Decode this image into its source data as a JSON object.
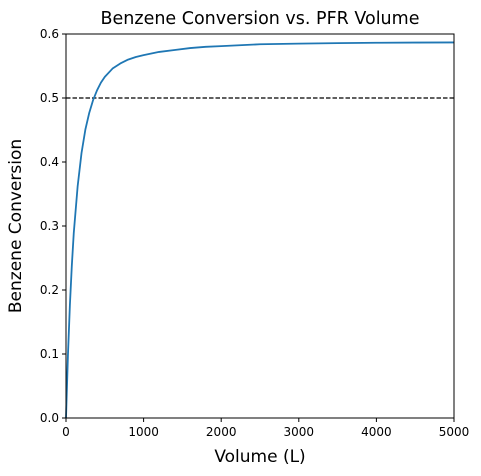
{
  "chart_data": {
    "type": "line",
    "title": "Benzene Conversion vs. PFR Volume",
    "xlabel": "Volume (L)",
    "ylabel": "Benzene Conversion",
    "xlim": [
      0,
      5000
    ],
    "ylim": [
      0,
      0.6
    ],
    "xticks": [
      0,
      1000,
      2000,
      3000,
      4000,
      5000
    ],
    "xtick_labels": [
      "0",
      "1000",
      "2000",
      "3000",
      "4000",
      "5000"
    ],
    "yticks": [
      0,
      0.1,
      0.2,
      0.3,
      0.4,
      0.5,
      0.6
    ],
    "ytick_labels": [
      "0.0",
      "0.1",
      "0.2",
      "0.3",
      "0.4",
      "0.5",
      "0.6"
    ],
    "grid": false,
    "series": [
      {
        "color": "#1f77b4",
        "x": [
          0,
          25,
          50,
          75,
          100,
          150,
          200,
          250,
          300,
          350,
          400,
          450,
          500,
          600,
          700,
          800,
          900,
          1000,
          1200,
          1400,
          1600,
          1800,
          2000,
          2500,
          3000,
          3500,
          4000,
          4500,
          5000
        ],
        "y": [
          0,
          0.098,
          0.176,
          0.238,
          0.289,
          0.362,
          0.414,
          0.451,
          0.477,
          0.497,
          0.512,
          0.524,
          0.533,
          0.546,
          0.554,
          0.56,
          0.564,
          0.567,
          0.572,
          0.575,
          0.578,
          0.58,
          0.581,
          0.584,
          0.585,
          0.5858,
          0.5863,
          0.5866,
          0.5868
        ]
      }
    ],
    "reference_lines": [
      {
        "axis": "y",
        "value": 0.5,
        "style": "dashed",
        "color": "#000000"
      }
    ]
  }
}
